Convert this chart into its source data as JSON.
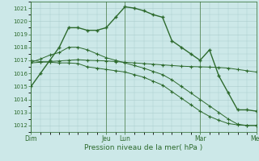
{
  "xlabel": "Pression niveau de la mer( hPa )",
  "bg_color": "#cce8e8",
  "grid_color": "#aacccc",
  "line_color": "#2d6a2d",
  "ylim": [
    1011.5,
    1021.5
  ],
  "yticks": [
    1012,
    1013,
    1014,
    1015,
    1016,
    1017,
    1018,
    1019,
    1020,
    1021
  ],
  "day_labels": [
    "Dim",
    "",
    "Jeu",
    "Lun",
    "",
    "Mar",
    "",
    "Mer"
  ],
  "day_tick_labels": [
    "Dim",
    "Jeu",
    "Lun",
    "Mar",
    "Mer"
  ],
  "day_tick_pos": [
    0,
    48,
    60,
    108,
    144
  ],
  "series1_x": [
    0,
    6,
    12,
    18,
    24,
    30,
    36,
    42,
    48,
    54,
    60,
    66,
    72,
    78,
    84,
    90,
    96,
    102,
    108,
    114,
    120,
    126,
    132,
    138,
    144
  ],
  "series1_y": [
    1015.0,
    1016.0,
    1017.0,
    1018.0,
    1019.5,
    1019.5,
    1019.3,
    1019.3,
    1019.5,
    1020.3,
    1021.1,
    1021.0,
    1020.8,
    1020.5,
    1020.3,
    1018.5,
    1018.0,
    1017.5,
    1017.0,
    1017.8,
    1015.8,
    1014.5,
    1013.2,
    1013.2,
    1013.1
  ],
  "series2_x": [
    0,
    6,
    12,
    18,
    24,
    30,
    36,
    42,
    48,
    54,
    60,
    66,
    72,
    78,
    84,
    90,
    96,
    102,
    108,
    114,
    120,
    126,
    132,
    138,
    144
  ],
  "series2_y": [
    1017.0,
    1016.9,
    1016.85,
    1016.8,
    1016.8,
    1016.75,
    1016.5,
    1016.4,
    1016.3,
    1016.2,
    1016.1,
    1015.9,
    1015.7,
    1015.4,
    1015.1,
    1014.6,
    1014.1,
    1013.6,
    1013.1,
    1012.7,
    1012.4,
    1012.15,
    1012.05,
    1012.0,
    1012.0
  ],
  "series3_x": [
    0,
    6,
    12,
    18,
    24,
    30,
    36,
    42,
    48,
    54,
    60,
    66,
    72,
    78,
    84,
    90,
    96,
    102,
    108,
    114,
    120,
    126,
    132,
    138,
    144
  ],
  "series3_y": [
    1016.8,
    1016.85,
    1016.9,
    1016.95,
    1017.0,
    1017.05,
    1017.0,
    1016.98,
    1016.95,
    1016.9,
    1016.85,
    1016.8,
    1016.75,
    1016.7,
    1016.65,
    1016.6,
    1016.55,
    1016.52,
    1016.5,
    1016.48,
    1016.45,
    1016.4,
    1016.3,
    1016.2,
    1016.1
  ],
  "series4_x": [
    0,
    6,
    12,
    18,
    24,
    30,
    36,
    42,
    48,
    54,
    60,
    66,
    72,
    78,
    84,
    90,
    96,
    102,
    108,
    114,
    120,
    126,
    132,
    138,
    144
  ],
  "series4_y": [
    1016.85,
    1017.1,
    1017.4,
    1017.6,
    1018.0,
    1018.0,
    1017.8,
    1017.5,
    1017.2,
    1017.0,
    1016.8,
    1016.6,
    1016.4,
    1016.15,
    1015.9,
    1015.5,
    1015.0,
    1014.5,
    1014.0,
    1013.5,
    1013.0,
    1012.5,
    1012.1,
    1012.0,
    1012.0
  ]
}
